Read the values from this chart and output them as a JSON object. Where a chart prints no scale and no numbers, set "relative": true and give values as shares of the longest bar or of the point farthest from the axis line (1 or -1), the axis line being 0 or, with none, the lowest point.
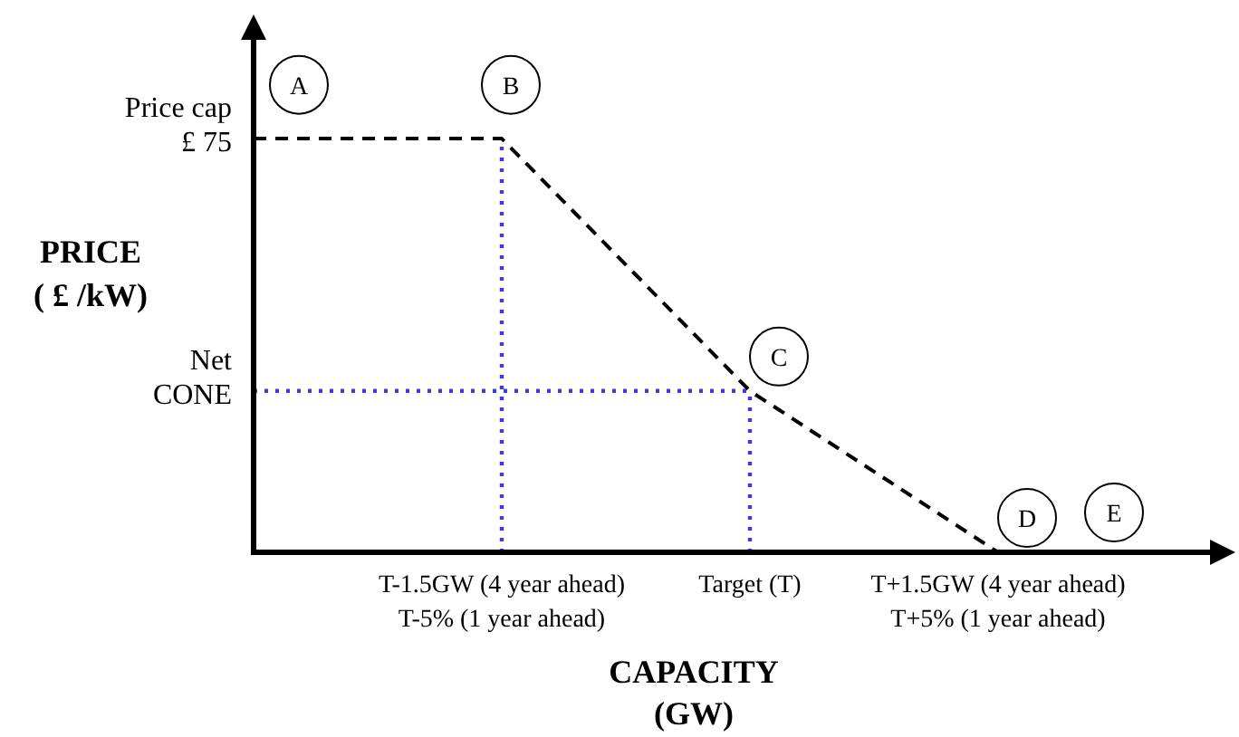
{
  "chart_data": {
    "type": "line",
    "relative": true,
    "xlabel": "CAPACITY\n(GW)",
    "ylabel": "PRICE\n( £ /kW)",
    "categories": [
      null,
      "T-1.5GW (4 year ahead)\nT-5% (1 year ahead)",
      "Target (T)",
      "T+1.5GW (4 year ahead)\nT+5% (1 year ahead)"
    ],
    "series": [
      {
        "color": "#000000",
        "line_style": "dashed",
        "values": [
          1,
          1,
          0.39,
          0
        ]
      }
    ],
    "ref_lines": [
      {
        "axis": "x",
        "value": "T-1.5GW (4 year ahead)\nT-5% (1 year ahead)",
        "color": "#3a3aee",
        "line_style": "dotted"
      },
      {
        "axis": "x",
        "value": "Target (T)",
        "color": "#3a3aee",
        "line_style": "dotted"
      },
      {
        "axis": "y",
        "value": 0.39,
        "label": "Net\nCONE",
        "color": "#3a3aee",
        "line_style": "dotted"
      }
    ],
    "annotations": [
      "Price cap\n£ 75",
      "A",
      "B",
      "C",
      "D",
      "E"
    ],
    "grid": false
  }
}
